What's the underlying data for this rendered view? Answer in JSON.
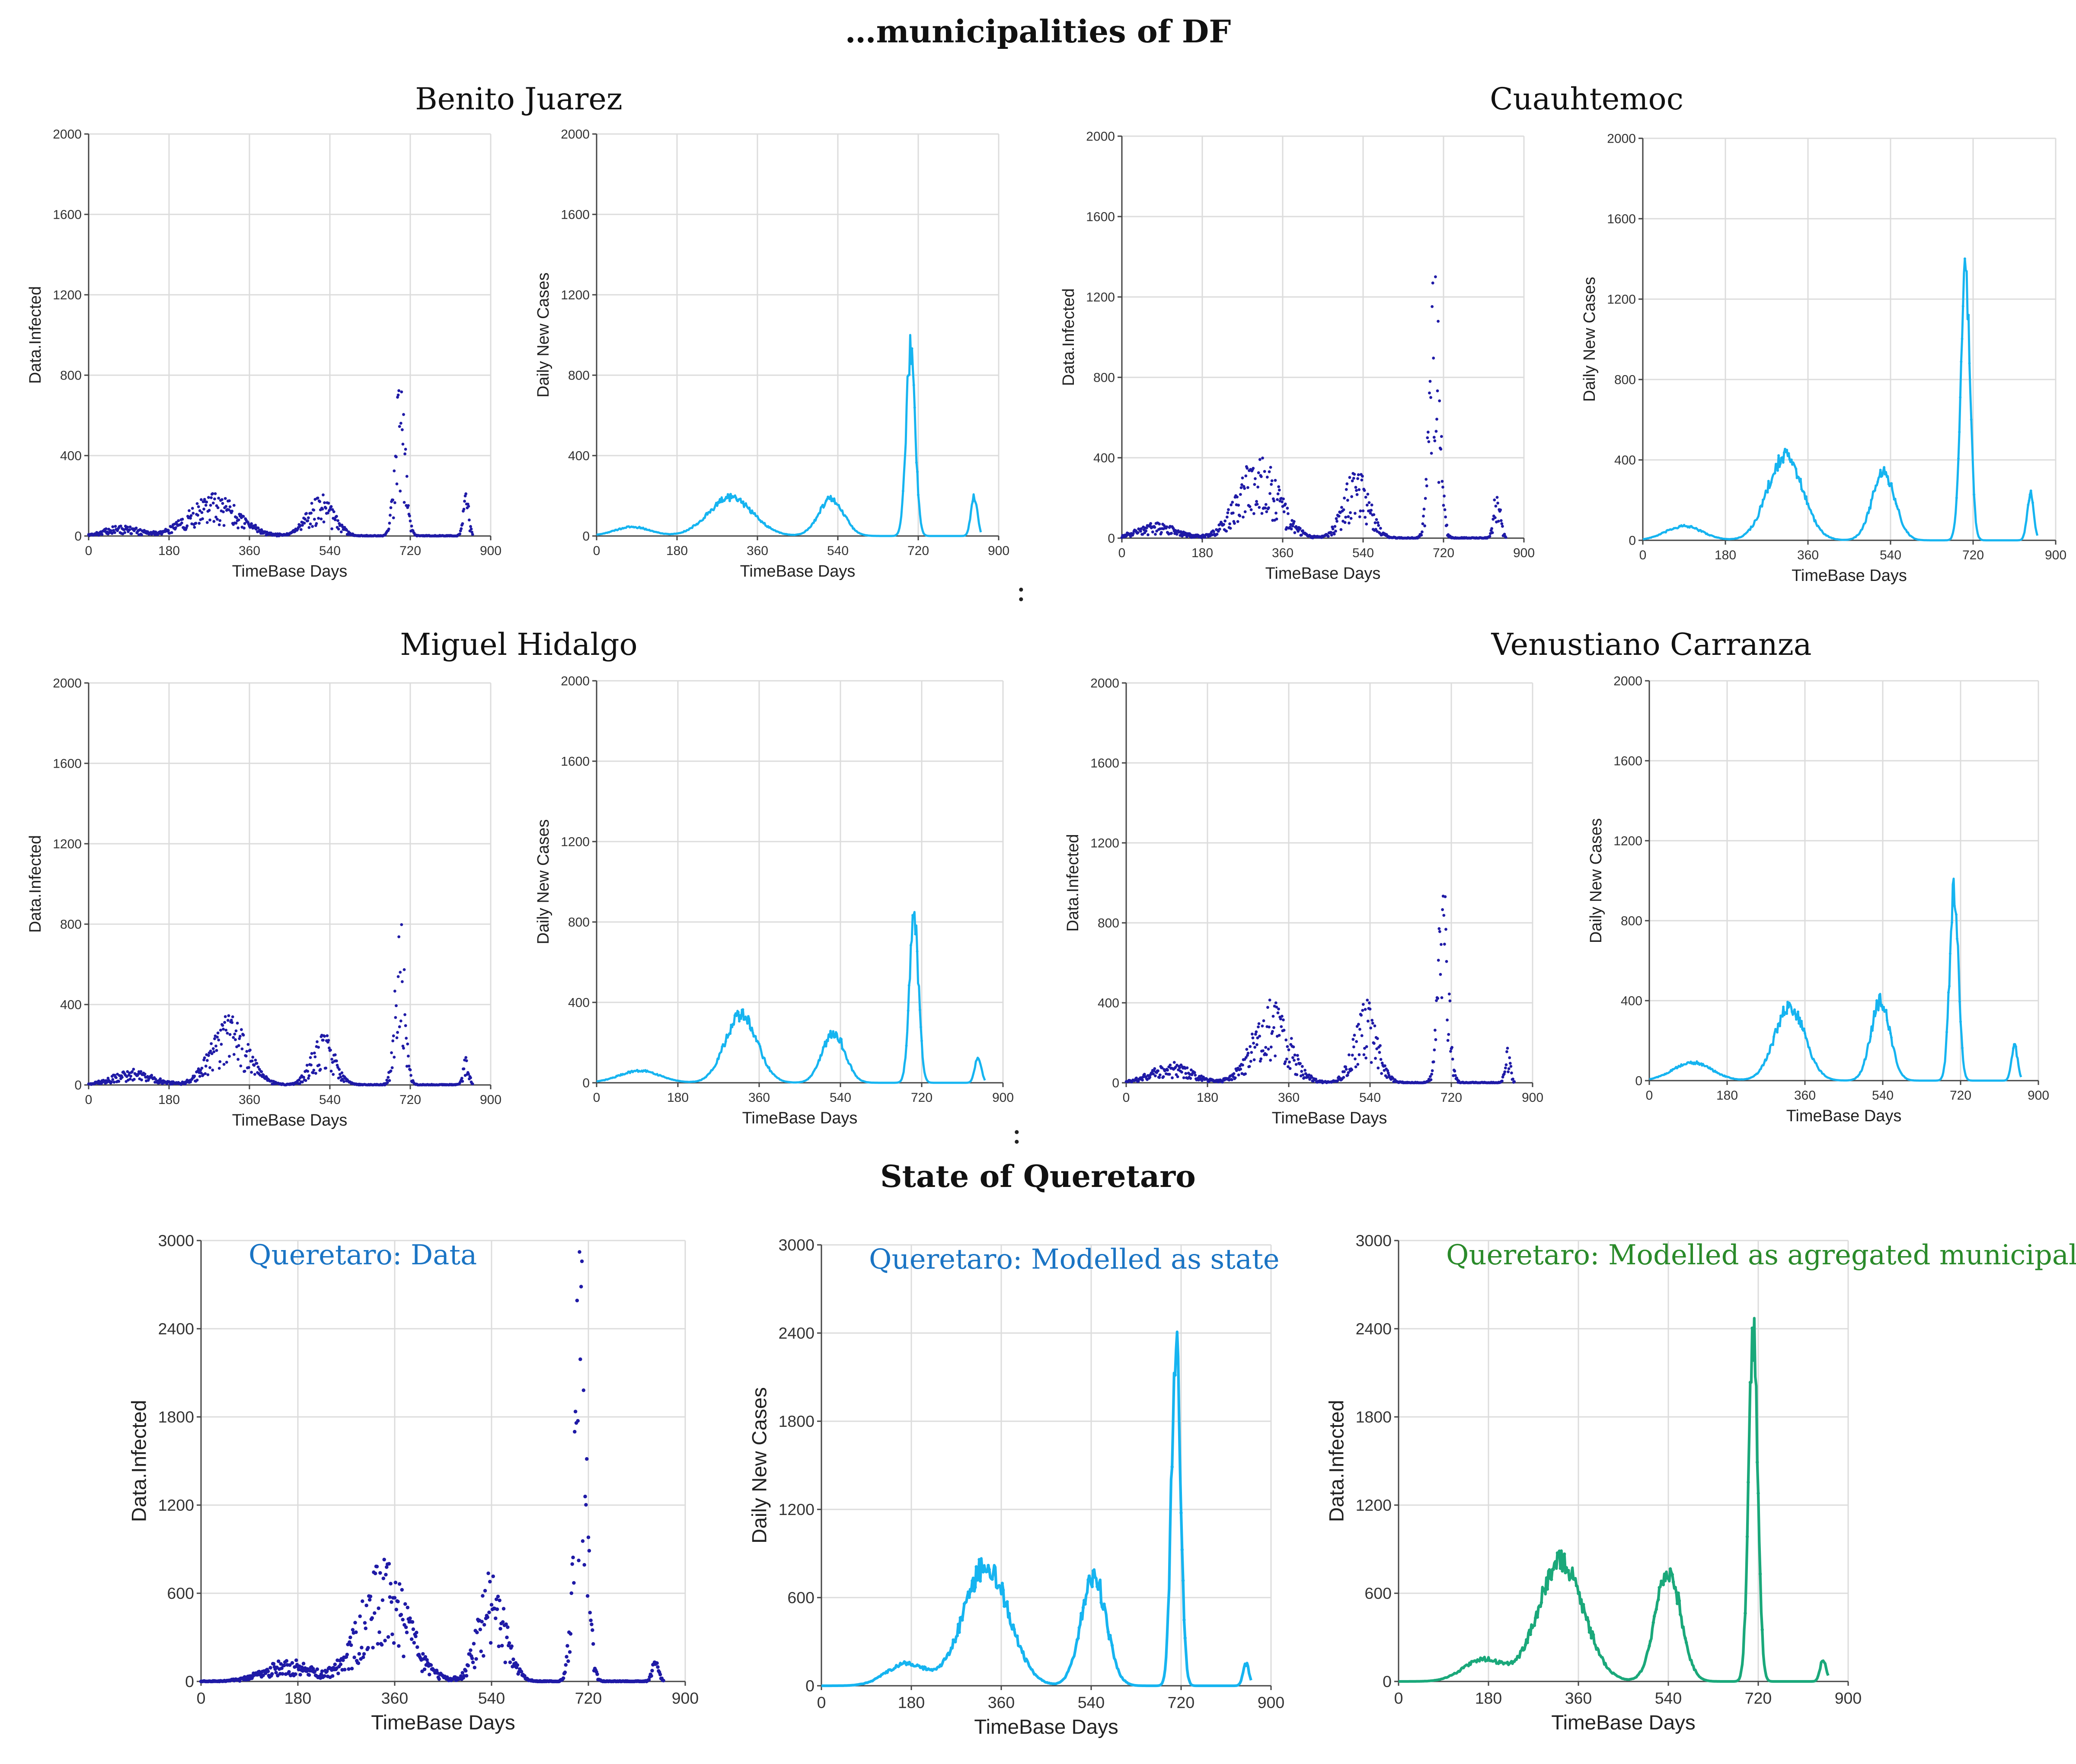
{
  "page": {
    "title": "…municipalities of DF",
    "section2_title": "State of Queretaro",
    "separator": ":"
  },
  "municipalities": [
    {
      "name": "Benito Juarez"
    },
    {
      "name": "Cuauhtemoc"
    },
    {
      "name": "Miguel Hidalgo"
    },
    {
      "name": "Venustiano Carranza"
    }
  ],
  "colors": {
    "data": "#1f1aa6",
    "model": "#16b4f0",
    "aggregated": "#1aa87a",
    "queretaro_title_blue": "#1a74c4",
    "queretaro_title_green": "#2a8a2a",
    "grid": "#dcdcdc",
    "axis": "#444444"
  },
  "chart_data": [
    {
      "id": "bj-data",
      "type": "scatter",
      "municipality": "Benito Juarez",
      "xlabel": "TimeBase Days",
      "ylabel": "Data.Infected",
      "xlim": [
        0,
        900
      ],
      "ylim": [
        0,
        2000
      ],
      "xticks": [
        0,
        180,
        360,
        540,
        720,
        900
      ],
      "yticks": [
        0,
        400,
        800,
        1200,
        1600,
        2000
      ],
      "series": "data",
      "peaks": [
        {
          "x": 75,
          "y": 40,
          "w": 40
        },
        {
          "x": 280,
          "y": 170,
          "w": 55
        },
        {
          "x": 520,
          "y": 165,
          "w": 30
        },
        {
          "x": 697,
          "y": 650,
          "w": 11
        },
        {
          "x": 845,
          "y": 200,
          "w": 6
        }
      ]
    },
    {
      "id": "bj-model",
      "type": "line",
      "municipality": "Benito Juarez",
      "xlabel": "TimeBase Days",
      "ylabel": "Daily New Cases",
      "xlim": [
        0,
        900
      ],
      "ylim": [
        0,
        2000
      ],
      "xticks": [
        0,
        180,
        360,
        540,
        720,
        900
      ],
      "yticks": [
        0,
        400,
        800,
        1200,
        1600,
        2000
      ],
      "series": "model",
      "peaks": [
        {
          "x": 80,
          "y": 45,
          "w": 40
        },
        {
          "x": 300,
          "y": 190,
          "w": 50
        },
        {
          "x": 525,
          "y": 185,
          "w": 28
        },
        {
          "x": 703,
          "y": 930,
          "w": 10
        },
        {
          "x": 845,
          "y": 200,
          "w": 7
        }
      ]
    },
    {
      "id": "cu-data",
      "type": "scatter",
      "municipality": "Cuauhtemoc",
      "xlabel": "TimeBase Days",
      "ylabel": "Data.Infected",
      "xlim": [
        0,
        900
      ],
      "ylim": [
        0,
        2000
      ],
      "xticks": [
        0,
        180,
        360,
        540,
        720,
        900
      ],
      "yticks": [
        0,
        400,
        800,
        1200,
        1600,
        2000
      ],
      "series": "data",
      "peaks": [
        {
          "x": 80,
          "y": 60,
          "w": 45
        },
        {
          "x": 305,
          "y": 340,
          "w": 45
        },
        {
          "x": 525,
          "y": 280,
          "w": 28
        },
        {
          "x": 700,
          "y": 1150,
          "w": 11
        },
        {
          "x": 840,
          "y": 230,
          "w": 7
        }
      ]
    },
    {
      "id": "cu-model",
      "type": "line",
      "municipality": "Cuauhtemoc",
      "xlabel": "TimeBase Days",
      "ylabel": "Daily New Cases",
      "xlim": [
        0,
        900
      ],
      "ylim": [
        0,
        2000
      ],
      "xticks": [
        0,
        180,
        360,
        540,
        720,
        900
      ],
      "yticks": [
        0,
        400,
        800,
        1200,
        1600,
        2000
      ],
      "series": "model",
      "peaks": [
        {
          "x": 90,
          "y": 70,
          "w": 40
        },
        {
          "x": 310,
          "y": 420,
          "w": 38
        },
        {
          "x": 525,
          "y": 340,
          "w": 25
        },
        {
          "x": 703,
          "y": 1380,
          "w": 10
        },
        {
          "x": 845,
          "y": 230,
          "w": 7
        }
      ]
    },
    {
      "id": "mh-data",
      "type": "scatter",
      "municipality": "Miguel Hidalgo",
      "xlabel": "TimeBase Days",
      "ylabel": "Data.Infected",
      "xlim": [
        0,
        900
      ],
      "ylim": [
        0,
        2000
      ],
      "xticks": [
        0,
        180,
        360,
        540,
        720,
        900
      ],
      "yticks": [
        0,
        400,
        800,
        1200,
        1600,
        2000
      ],
      "series": "data",
      "peaks": [
        {
          "x": 100,
          "y": 60,
          "w": 45
        },
        {
          "x": 315,
          "y": 280,
          "w": 40
        },
        {
          "x": 525,
          "y": 220,
          "w": 25
        },
        {
          "x": 697,
          "y": 670,
          "w": 11
        },
        {
          "x": 845,
          "y": 140,
          "w": 6
        }
      ]
    },
    {
      "id": "mh-model",
      "type": "line",
      "municipality": "Miguel Hidalgo",
      "xlabel": "TimeBase Days",
      "ylabel": "Daily New Cases",
      "xlim": [
        0,
        900
      ],
      "ylim": [
        0,
        2000
      ],
      "xticks": [
        0,
        180,
        360,
        540,
        720,
        900
      ],
      "yticks": [
        0,
        400,
        800,
        1200,
        1600,
        2000
      ],
      "series": "model",
      "peaks": [
        {
          "x": 95,
          "y": 60,
          "w": 45
        },
        {
          "x": 320,
          "y": 340,
          "w": 35
        },
        {
          "x": 525,
          "y": 250,
          "w": 25
        },
        {
          "x": 703,
          "y": 810,
          "w": 10
        },
        {
          "x": 845,
          "y": 130,
          "w": 7
        }
      ]
    },
    {
      "id": "vc-data",
      "type": "scatter",
      "municipality": "Venustiano Carranza",
      "xlabel": "TimeBase Days",
      "ylabel": "Data.Infected",
      "xlim": [
        0,
        900
      ],
      "ylim": [
        0,
        2000
      ],
      "xticks": [
        0,
        180,
        360,
        540,
        720,
        900
      ],
      "yticks": [
        0,
        400,
        800,
        1200,
        1600,
        2000
      ],
      "series": "data",
      "peaks": [
        {
          "x": 100,
          "y": 80,
          "w": 45
        },
        {
          "x": 320,
          "y": 340,
          "w": 40
        },
        {
          "x": 530,
          "y": 340,
          "w": 25
        },
        {
          "x": 702,
          "y": 850,
          "w": 11
        },
        {
          "x": 845,
          "y": 140,
          "w": 6
        }
      ]
    },
    {
      "id": "vc-model",
      "type": "line",
      "municipality": "Venustiano Carranza",
      "xlabel": "TimeBase Days",
      "ylabel": "Daily New Cases",
      "xlim": [
        0,
        900
      ],
      "ylim": [
        0,
        2000
      ],
      "xticks": [
        0,
        180,
        360,
        540,
        720,
        900
      ],
      "yticks": [
        0,
        400,
        800,
        1200,
        1600,
        2000
      ],
      "series": "model",
      "peaks": [
        {
          "x": 100,
          "y": 90,
          "w": 45
        },
        {
          "x": 325,
          "y": 370,
          "w": 35
        },
        {
          "x": 535,
          "y": 400,
          "w": 22
        },
        {
          "x": 705,
          "y": 950,
          "w": 10
        },
        {
          "x": 845,
          "y": 170,
          "w": 7
        }
      ]
    },
    {
      "id": "q-data",
      "type": "scatter",
      "title": "Queretaro: Data",
      "titleColor": "queretaro_title_blue",
      "xlabel": "TimeBase Days",
      "ylabel": "Data.Infected",
      "xlim": [
        0,
        900
      ],
      "ylim": [
        0,
        3000
      ],
      "xticks": [
        0,
        180,
        360,
        540,
        720,
        900
      ],
      "yticks": [
        0,
        600,
        1200,
        1800,
        2400,
        3000
      ],
      "series": "data",
      "peaks": [
        {
          "x": 160,
          "y": 120,
          "w": 45
        },
        {
          "x": 340,
          "y": 650,
          "w": 45
        },
        {
          "x": 540,
          "y": 600,
          "w": 25
        },
        {
          "x": 705,
          "y": 2400,
          "w": 11
        },
        {
          "x": 845,
          "y": 130,
          "w": 6
        }
      ]
    },
    {
      "id": "q-state",
      "type": "line",
      "title": "Queretaro: Modelled as state",
      "titleColor": "queretaro_title_blue",
      "xlabel": "TimeBase Days",
      "ylabel": "Daily New Cases",
      "xlim": [
        0,
        900
      ],
      "ylim": [
        0,
        3000
      ],
      "xticks": [
        0,
        180,
        360,
        540,
        720,
        900
      ],
      "yticks": [
        0,
        600,
        1200,
        1800,
        2400,
        3000
      ],
      "series": "model",
      "peaks": [
        {
          "x": 170,
          "y": 150,
          "w": 40
        },
        {
          "x": 330,
          "y": 820,
          "w": 45
        },
        {
          "x": 545,
          "y": 750,
          "w": 25
        },
        {
          "x": 710,
          "y": 2400,
          "w": 9
        },
        {
          "x": 850,
          "y": 150,
          "w": 6
        }
      ]
    },
    {
      "id": "q-agg",
      "type": "line",
      "title": "Queretaro: Modelled as agregated municipalities",
      "titleColor": "queretaro_title_green",
      "xlabel": "TimeBase Days",
      "ylabel": "Data.Infected",
      "xlim": [
        0,
        900
      ],
      "ylim": [
        0,
        3000
      ],
      "xticks": [
        0,
        180,
        360,
        540,
        720,
        900
      ],
      "yticks": [
        0,
        600,
        1200,
        1800,
        2400,
        3000
      ],
      "series": "aggregated",
      "peaks": [
        {
          "x": 170,
          "y": 150,
          "w": 40
        },
        {
          "x": 325,
          "y": 820,
          "w": 45
        },
        {
          "x": 540,
          "y": 760,
          "w": 25
        },
        {
          "x": 710,
          "y": 2400,
          "w": 9
        },
        {
          "x": 850,
          "y": 150,
          "w": 6
        }
      ]
    }
  ]
}
